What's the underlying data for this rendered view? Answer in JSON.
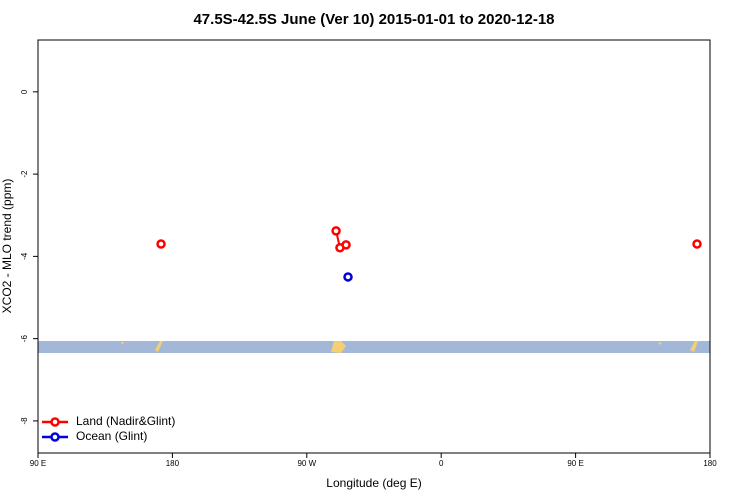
{
  "chart_data": {
    "type": "line",
    "title": "47.5S-42.5S June (Ver 10)   2015-01-01 to 2020-12-18",
    "x_label": "Longitude (deg E)",
    "y_label": "XCO2 - MLO trend (ppm)",
    "xlim": [
      90,
      540
    ],
    "xticks": [
      {
        "value": 90,
        "label": "90 E"
      },
      {
        "value": 180,
        "label": "180"
      },
      {
        "value": 270,
        "label": "90 W"
      },
      {
        "value": 360,
        "label": "0"
      },
      {
        "value": 450,
        "label": "90 E"
      },
      {
        "value": 540,
        "label": "180"
      }
    ],
    "ylim": [
      -8.78,
      1.26
    ],
    "yticks": [
      0,
      -2,
      -4,
      -6,
      -8
    ],
    "legend": "bottom-left",
    "series": [
      {
        "name": "Land (Nadir&Glint)",
        "color": "#ff0000",
        "x": [
          172.4,
          null,
          289.6,
          292.2,
          296.3,
          null,
          531.3
        ],
        "values": [
          -3.7,
          null,
          -3.38,
          -3.79,
          -3.72,
          null,
          -3.7
        ]
      },
      {
        "name": "Ocean (Glint)",
        "color": "#0000dd",
        "x": [
          297.6
        ],
        "values": [
          -4.5
        ]
      }
    ]
  }
}
